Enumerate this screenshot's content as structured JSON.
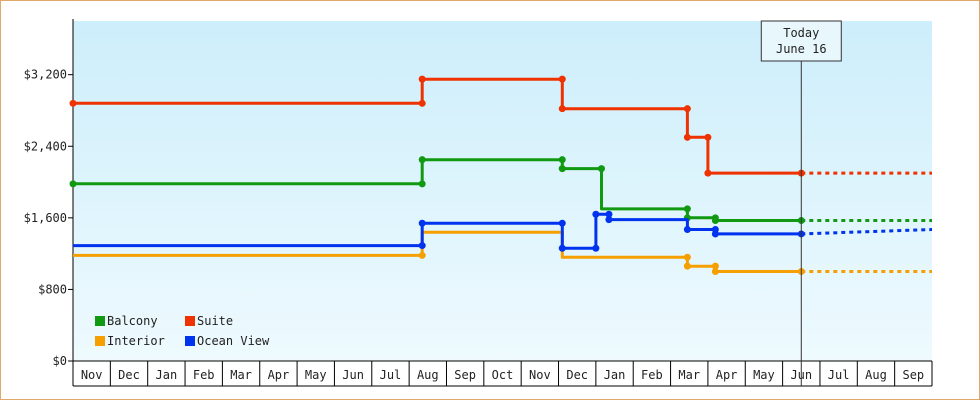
{
  "chart_data": {
    "type": "line",
    "title": "",
    "xlabel": "",
    "ylabel": "",
    "ylim": [
      0,
      3800
    ],
    "y_ticks": [
      {
        "value": 0,
        "label": "$0"
      },
      {
        "value": 800,
        "label": "$800"
      },
      {
        "value": 1600,
        "label": "$1,600"
      },
      {
        "value": 2400,
        "label": "$2,400"
      },
      {
        "value": 3200,
        "label": "$3,200"
      }
    ],
    "x_range": [
      0,
      23
    ],
    "x_ticks": [
      "Nov",
      "Dec",
      "Jan",
      "Feb",
      "Mar",
      "Apr",
      "May",
      "Jun",
      "Jul",
      "Aug",
      "Sep",
      "Oct",
      "Nov",
      "Dec",
      "Jan",
      "Feb",
      "Mar",
      "Apr",
      "May",
      "Jun",
      "Jul",
      "Aug",
      "Sep"
    ],
    "today": {
      "x": 19.5,
      "lines": [
        "Today",
        "June 16"
      ]
    },
    "legend": {
      "placement": "bottom-left"
    },
    "grid": false,
    "background_gradient": [
      "#cdeefb",
      "#eefafe"
    ],
    "series": [
      {
        "name": "Balcony",
        "color": "#119911",
        "points": [
          [
            0,
            1980
          ],
          [
            9.35,
            1980
          ],
          [
            9.35,
            2250
          ],
          [
            13.1,
            2250
          ],
          [
            13.1,
            2150
          ],
          [
            14.15,
            2150
          ],
          [
            14.15,
            1700
          ],
          [
            16.45,
            1700
          ],
          [
            16.45,
            1600
          ],
          [
            17.2,
            1600
          ],
          [
            17.2,
            1570
          ],
          [
            19.5,
            1570
          ]
        ],
        "markers": [
          [
            0,
            1980
          ],
          [
            9.35,
            1980
          ],
          [
            9.35,
            2250
          ],
          [
            13.1,
            2250
          ],
          [
            13.1,
            2150
          ],
          [
            14.15,
            2150
          ],
          [
            16.45,
            1700
          ],
          [
            16.45,
            1600
          ],
          [
            17.2,
            1600
          ],
          [
            17.2,
            1570
          ],
          [
            19.5,
            1570
          ]
        ],
        "forecast": [
          [
            19.5,
            1570
          ],
          [
            23,
            1570
          ]
        ]
      },
      {
        "name": "Suite",
        "color": "#ee3300",
        "points": [
          [
            0,
            2880
          ],
          [
            9.35,
            2880
          ],
          [
            9.35,
            3150
          ],
          [
            13.1,
            3150
          ],
          [
            13.1,
            2820
          ],
          [
            16.45,
            2820
          ],
          [
            16.45,
            2500
          ],
          [
            17.0,
            2500
          ],
          [
            17.0,
            2100
          ],
          [
            19.5,
            2100
          ]
        ],
        "markers": [
          [
            0,
            2880
          ],
          [
            9.35,
            2880
          ],
          [
            9.35,
            3150
          ],
          [
            13.1,
            3150
          ],
          [
            13.1,
            2820
          ],
          [
            16.45,
            2820
          ],
          [
            16.45,
            2500
          ],
          [
            17.0,
            2500
          ],
          [
            17.0,
            2100
          ],
          [
            19.5,
            2100
          ]
        ],
        "forecast": [
          [
            19.5,
            2100
          ],
          [
            23,
            2100
          ]
        ]
      },
      {
        "name": "Interior",
        "color": "#f5a000",
        "points": [
          [
            0,
            1180
          ],
          [
            9.35,
            1180
          ],
          [
            9.35,
            1440
          ],
          [
            13.1,
            1440
          ],
          [
            13.1,
            1160
          ],
          [
            16.45,
            1160
          ],
          [
            16.45,
            1060
          ],
          [
            17.2,
            1060
          ],
          [
            17.2,
            1000
          ],
          [
            19.5,
            1000
          ]
        ],
        "markers": [
          [
            9.35,
            1180
          ],
          [
            16.45,
            1160
          ],
          [
            16.45,
            1060
          ],
          [
            17.2,
            1060
          ],
          [
            17.2,
            1000
          ],
          [
            19.5,
            1000
          ]
        ],
        "forecast": [
          [
            19.5,
            1000
          ],
          [
            23,
            1000
          ]
        ]
      },
      {
        "name": "Ocean View",
        "color": "#0033ee",
        "points": [
          [
            0,
            1290
          ],
          [
            9.35,
            1290
          ],
          [
            9.35,
            1540
          ],
          [
            13.1,
            1540
          ],
          [
            13.1,
            1260
          ],
          [
            14.0,
            1260
          ],
          [
            14.0,
            1640
          ],
          [
            14.35,
            1640
          ],
          [
            14.35,
            1580
          ],
          [
            16.45,
            1580
          ],
          [
            16.45,
            1470
          ],
          [
            17.2,
            1470
          ],
          [
            17.2,
            1420
          ],
          [
            19.5,
            1420
          ]
        ],
        "markers": [
          [
            9.35,
            1290
          ],
          [
            9.35,
            1540
          ],
          [
            13.1,
            1540
          ],
          [
            13.1,
            1260
          ],
          [
            14.0,
            1260
          ],
          [
            14.0,
            1640
          ],
          [
            14.35,
            1640
          ],
          [
            14.35,
            1580
          ],
          [
            16.45,
            1470
          ],
          [
            17.2,
            1470
          ],
          [
            17.2,
            1420
          ],
          [
            19.5,
            1420
          ]
        ],
        "forecast": [
          [
            19.5,
            1420
          ],
          [
            23,
            1470
          ]
        ]
      }
    ]
  }
}
